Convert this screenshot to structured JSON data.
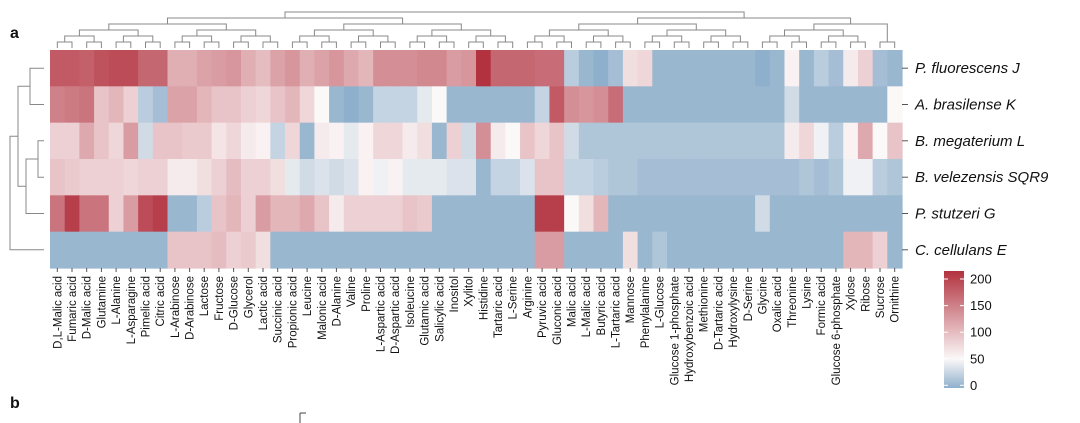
{
  "panels": {
    "a": "a",
    "b": "b"
  },
  "colors": {
    "low": "#8fb0cc",
    "mid": "#fbf8f8",
    "high": "#b2323f"
  },
  "chart_data": {
    "type": "heatmap",
    "rows": [
      "P.  fluorescens J",
      "A. brasilense K",
      "B. megaterium L",
      "B. velezensis SQR9",
      "P. stutzeri G",
      "C. cellulans E"
    ],
    "columns": [
      "D,L-Malic acid",
      "Fumaric acid",
      "D-Malic acid",
      "Glutamine",
      "L-Alanine",
      "L-Asparagine",
      "Pimelic acid",
      "Citric acid",
      "L-Arabinose",
      "D-Arabinose",
      "Lactose",
      "Fructose",
      "D-Glucose",
      "Glycerol",
      "Lactic acid",
      "Succinic acid",
      "Propionic acid",
      "Leucine",
      "Malonic acid",
      "D-Alanine",
      "Valine",
      "Proline",
      "L-Aspartic acid",
      "D-Aspartic acid",
      "Isoleucine",
      "Glutamic acid",
      "Salicylic acid",
      "Inositol",
      "Xylitol",
      "Histidine",
      "Tartaric acid",
      "L-Serine",
      "Arginine",
      "Pyruvic acid",
      "Gluconic acid",
      "Malic acid",
      "L-Malic acid",
      "Butyric acid",
      "L-Tartaric acid",
      "Mannose",
      "Phenylalanine",
      "L-Glucose",
      "Glucose 1-phosphate",
      "Hydroxybenzoic acid",
      "Methionine",
      "D-Tartaric acid",
      "Hydroxylysine",
      "D-Serine",
      "Glycine",
      "Oxalic acid",
      "Threonine",
      "Lysine",
      "Formic acid",
      "Glucose 6-phosphate",
      "Xylose",
      "Ribose",
      "Sucrose",
      "Ornithine"
    ],
    "values": [
      [
        170,
        170,
        165,
        175,
        180,
        180,
        160,
        160,
        105,
        105,
        115,
        120,
        125,
        105,
        95,
        115,
        125,
        105,
        115,
        125,
        110,
        100,
        130,
        130,
        130,
        135,
        135,
        120,
        125,
        210,
        160,
        160,
        160,
        155,
        155,
        20,
        5,
        0,
        10,
        70,
        75,
        5,
        5,
        5,
        5,
        5,
        5,
        5,
        0,
        5,
        55,
        5,
        20,
        10,
        60,
        80,
        10,
        5
      ],
      [
        140,
        145,
        150,
        90,
        100,
        80,
        20,
        10,
        115,
        115,
        100,
        90,
        90,
        80,
        75,
        90,
        100,
        75,
        50,
        5,
        0,
        5,
        25,
        25,
        25,
        40,
        50,
        5,
        5,
        5,
        5,
        5,
        5,
        25,
        170,
        130,
        125,
        130,
        155,
        5,
        5,
        5,
        5,
        5,
        5,
        5,
        5,
        5,
        5,
        5,
        30,
        5,
        5,
        5,
        5,
        5,
        5,
        50
      ],
      [
        80,
        80,
        110,
        90,
        75,
        120,
        30,
        90,
        90,
        85,
        85,
        65,
        75,
        60,
        55,
        25,
        75,
        5,
        60,
        55,
        40,
        55,
        75,
        75,
        60,
        70,
        5,
        80,
        30,
        130,
        60,
        50,
        90,
        75,
        90,
        30,
        15,
        15,
        15,
        15,
        15,
        15,
        15,
        15,
        15,
        15,
        15,
        15,
        15,
        15,
        60,
        75,
        45,
        20,
        55,
        110,
        50,
        90
      ],
      [
        90,
        85,
        80,
        80,
        80,
        75,
        80,
        80,
        60,
        60,
        70,
        80,
        95,
        80,
        80,
        70,
        40,
        30,
        35,
        30,
        35,
        55,
        45,
        55,
        40,
        40,
        40,
        35,
        35,
        5,
        25,
        25,
        35,
        90,
        90,
        25,
        25,
        20,
        15,
        15,
        10,
        10,
        10,
        10,
        10,
        10,
        10,
        10,
        10,
        10,
        10,
        15,
        10,
        15,
        45,
        45,
        20,
        15
      ],
      [
        150,
        190,
        150,
        150,
        80,
        120,
        180,
        190,
        5,
        5,
        20,
        90,
        100,
        80,
        120,
        100,
        100,
        110,
        90,
        60,
        80,
        80,
        80,
        80,
        90,
        85,
        5,
        5,
        5,
        5,
        5,
        5,
        5,
        190,
        190,
        50,
        70,
        100,
        5,
        5,
        5,
        5,
        5,
        5,
        5,
        5,
        5,
        5,
        30,
        5,
        5,
        5,
        5,
        5,
        5,
        5,
        5,
        5
      ],
      [
        5,
        5,
        5,
        5,
        5,
        5,
        5,
        5,
        90,
        90,
        90,
        95,
        80,
        85,
        70,
        5,
        5,
        5,
        5,
        5,
        5,
        5,
        5,
        5,
        5,
        5,
        5,
        5,
        5,
        5,
        5,
        5,
        5,
        120,
        120,
        5,
        5,
        5,
        5,
        70,
        5,
        15,
        5,
        5,
        5,
        5,
        5,
        5,
        5,
        5,
        5,
        5,
        5,
        5,
        100,
        100,
        80,
        5
      ]
    ],
    "legend": {
      "min": -5,
      "max": 215,
      "ticks": [
        "200",
        "150",
        "100",
        "50",
        "0"
      ],
      "tick_values": [
        200,
        150,
        100,
        50,
        0
      ],
      "placement": "right"
    }
  }
}
